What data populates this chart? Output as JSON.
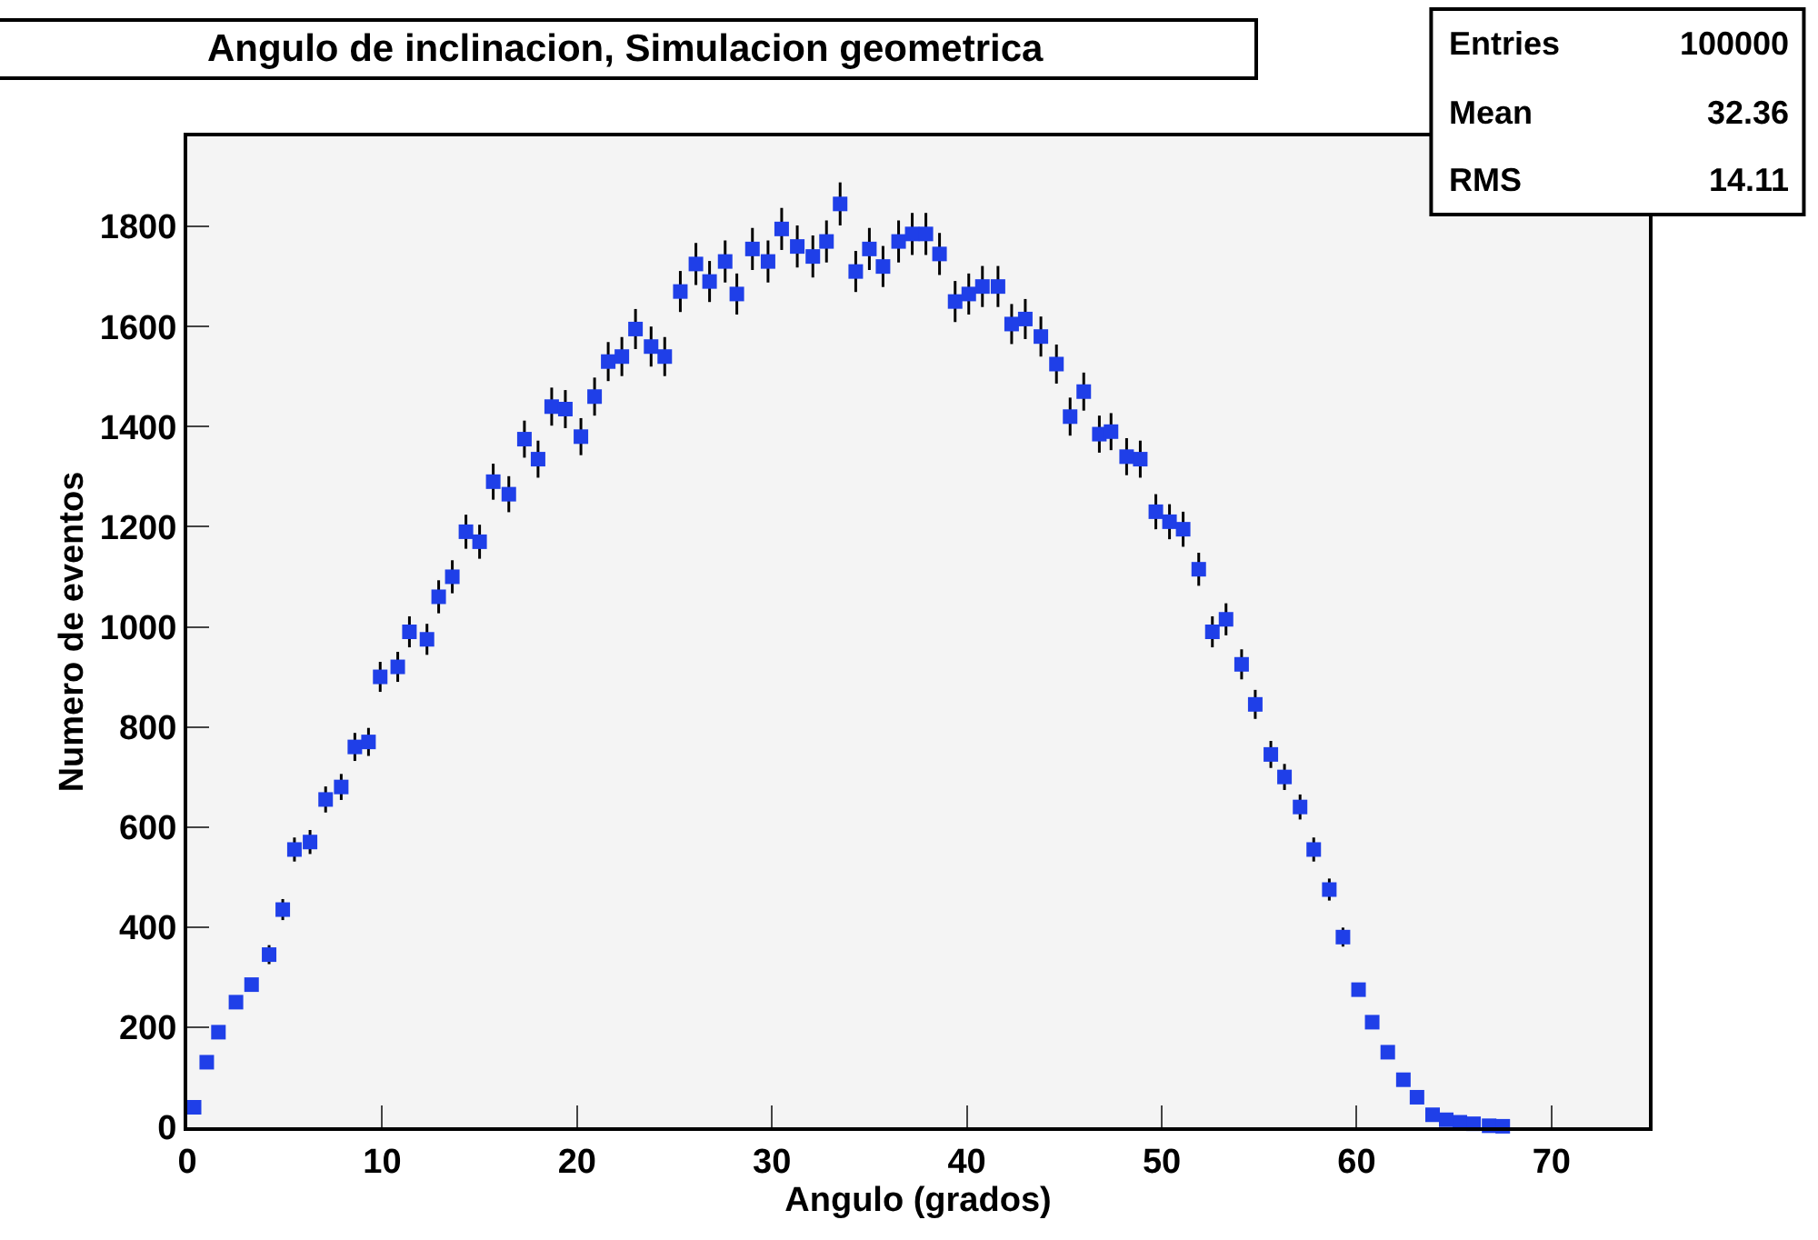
{
  "chart_data": {
    "type": "scatter",
    "title": "Angulo de inclinacion, Simulacion geometrica",
    "xlabel": "Angulo (grados)",
    "ylabel": "Numero de eventos",
    "annotations": [
      "Entries 100000",
      "Mean 32.36",
      "RMS 14.11"
    ],
    "xlim": [
      0,
      75
    ],
    "xticks": [
      0,
      10,
      20,
      30,
      40,
      50,
      60,
      70
    ],
    "ylim": [
      0,
      1980
    ],
    "yticks": [
      0,
      200,
      400,
      600,
      800,
      1000,
      1200,
      1400,
      1600,
      1800
    ],
    "grid": false,
    "marker": "square",
    "series": [
      {
        "color": "#1f3fe8",
        "x": [
          0.35,
          1.0,
          1.6,
          2.5,
          3.3,
          4.2,
          4.9,
          5.5,
          6.3,
          7.1,
          7.9,
          8.6,
          9.3,
          9.9,
          10.8,
          11.4,
          12.3,
          12.9,
          13.6,
          14.3,
          15.0,
          15.7,
          16.5,
          17.3,
          18.0,
          18.7,
          19.4,
          20.2,
          20.9,
          21.6,
          22.3,
          23.0,
          23.8,
          24.5,
          25.3,
          26.1,
          26.8,
          27.6,
          28.2,
          29.0,
          29.8,
          30.5,
          31.3,
          32.1,
          32.8,
          33.5,
          34.3,
          35.0,
          35.7,
          36.5,
          37.2,
          37.9,
          38.6,
          39.4,
          40.1,
          40.8,
          41.6,
          42.3,
          43.0,
          43.8,
          44.6,
          45.3,
          46.0,
          46.8,
          47.4,
          48.2,
          48.9,
          49.7,
          50.4,
          51.1,
          51.9,
          52.6,
          53.3,
          54.1,
          54.8,
          55.6,
          56.3,
          57.1,
          57.8,
          58.6,
          59.3,
          60.1,
          60.8,
          61.6,
          62.4,
          63.1,
          63.9,
          64.6,
          65.3,
          66.0,
          66.8,
          67.5
        ],
        "values": [
          40,
          130,
          190,
          250,
          285,
          345,
          435,
          555,
          570,
          655,
          680,
          760,
          770,
          900,
          920,
          990,
          975,
          1060,
          1100,
          1190,
          1170,
          1290,
          1265,
          1375,
          1335,
          1440,
          1435,
          1380,
          1460,
          1530,
          1540,
          1595,
          1560,
          1540,
          1670,
          1725,
          1690,
          1730,
          1665,
          1755,
          1730,
          1795,
          1760,
          1740,
          1770,
          1845,
          1710,
          1755,
          1720,
          1770,
          1785,
          1785,
          1745,
          1650,
          1665,
          1680,
          1680,
          1605,
          1615,
          1580,
          1525,
          1420,
          1470,
          1385,
          1390,
          1340,
          1335,
          1230,
          1210,
          1195,
          1115,
          990,
          1015,
          925,
          845,
          745,
          700,
          640,
          555,
          475,
          380,
          275,
          210,
          150,
          95,
          60,
          25,
          15,
          10,
          7,
          3,
          2
        ],
        "errors": [
          null,
          null,
          null,
          null,
          null,
          19,
          21,
          24,
          24,
          26,
          26,
          28,
          28,
          30,
          30,
          31,
          31,
          33,
          33,
          34,
          34,
          36,
          36,
          37,
          37,
          38,
          38,
          37,
          38,
          39,
          39,
          40,
          40,
          39,
          41,
          42,
          41,
          42,
          41,
          42,
          42,
          42,
          42,
          42,
          42,
          43,
          41,
          42,
          41,
          42,
          42,
          42,
          42,
          41,
          41,
          41,
          41,
          40,
          40,
          40,
          39,
          38,
          38,
          37,
          37,
          37,
          37,
          35,
          35,
          35,
          33,
          31,
          32,
          30,
          29,
          27,
          26,
          25,
          24,
          22,
          19,
          null,
          null,
          null,
          null,
          null,
          null,
          null,
          null,
          null,
          null,
          null
        ]
      }
    ]
  }
}
